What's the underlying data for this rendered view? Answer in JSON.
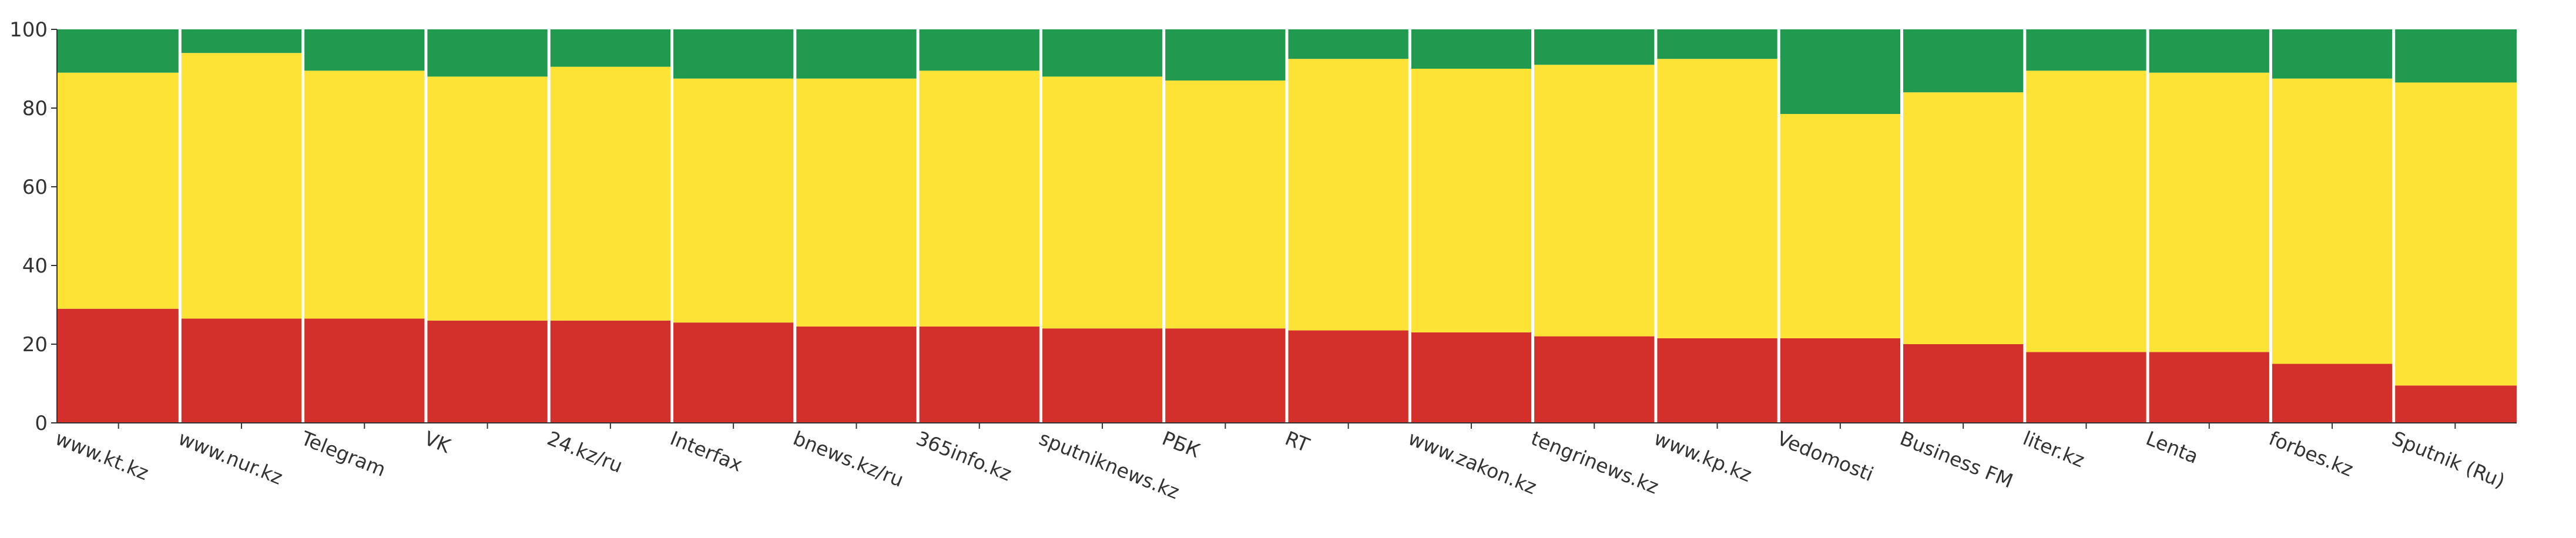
{
  "chart_data": {
    "type": "bar",
    "stacked": true,
    "normalized_to": 100,
    "categories": [
      "www.kt.kz",
      "www.nur.kz",
      "Telegram",
      "VK",
      "24.kz/ru",
      "Interfax",
      "bnews.kz/ru",
      "365info.kz",
      "sputniknews.kz",
      "РБК",
      "RT",
      "www.zakon.kz",
      "tengrinews.kz",
      "www.kp.kz",
      "Vedomosti",
      "Business FM",
      "liter.kz",
      "Lenta",
      "forbes.kz",
      "Sputnik (Ru)"
    ],
    "series": [
      {
        "color": "#d4302b",
        "values": [
          29,
          26.5,
          26.5,
          26,
          26,
          25.5,
          24.5,
          24.5,
          24,
          24,
          23.5,
          23,
          22,
          21.5,
          21.5,
          20,
          18,
          18,
          15,
          9.5
        ]
      },
      {
        "color": "#fde336",
        "values": [
          60,
          67.5,
          63,
          62,
          64.5,
          62,
          63,
          65,
          64,
          63,
          69,
          67,
          69,
          71,
          57,
          64,
          71.5,
          71,
          72.5,
          77
        ]
      },
      {
        "color": "#219a50",
        "values": [
          11,
          6,
          10.5,
          12,
          9.5,
          12.5,
          12.5,
          10.5,
          12,
          13,
          7.5,
          10,
          9,
          7.5,
          21.5,
          16,
          10.5,
          11,
          12.5,
          13.5
        ]
      }
    ],
    "ylim": [
      0,
      100
    ],
    "yticks": [
      0,
      20,
      40,
      60,
      80,
      100
    ],
    "xlabel": "",
    "ylabel": "",
    "title": "",
    "grid": false,
    "legend": "none"
  }
}
